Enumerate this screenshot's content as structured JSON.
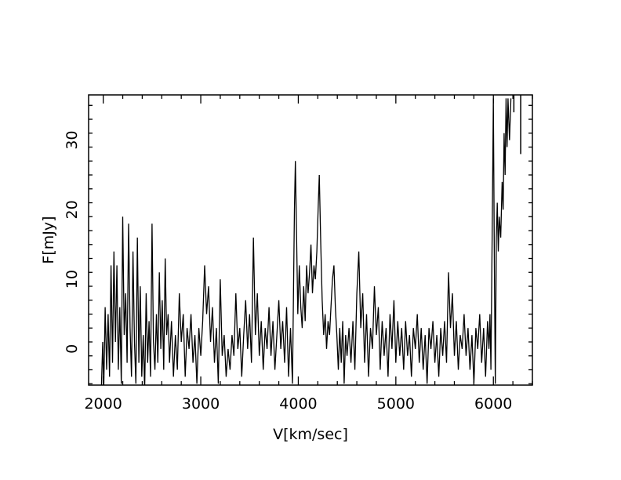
{
  "chart_data": {
    "type": "line",
    "title": "",
    "xlabel": "V[km/sec]",
    "ylabel": "F[mJy]",
    "xlim": [
      1850,
      6400
    ],
    "ylim": [
      -5.2,
      36.5
    ],
    "xticks": [
      2000,
      3000,
      4000,
      5000,
      6000
    ],
    "xtick_labels": [
      "2000",
      "3000",
      "4000",
      "5000",
      "6000"
    ],
    "yticks": [
      0,
      10,
      20,
      30
    ],
    "ytick_labels": [
      "0",
      "10",
      "20",
      "30"
    ],
    "grid": false,
    "legend": "none",
    "line_color": "#000000",
    "series": [
      {
        "values": [
          [
            1980,
            -6
          ],
          [
            1995,
            1
          ],
          [
            2005,
            -6
          ],
          [
            2020,
            6
          ],
          [
            2035,
            -3
          ],
          [
            2050,
            5
          ],
          [
            2065,
            -4
          ],
          [
            2080,
            12
          ],
          [
            2095,
            -2
          ],
          [
            2110,
            14
          ],
          [
            2125,
            1
          ],
          [
            2140,
            12
          ],
          [
            2155,
            -3
          ],
          [
            2170,
            6
          ],
          [
            2185,
            -5
          ],
          [
            2200,
            19
          ],
          [
            2215,
            2
          ],
          [
            2230,
            8
          ],
          [
            2245,
            -2
          ],
          [
            2260,
            18
          ],
          [
            2275,
            3
          ],
          [
            2290,
            -4
          ],
          [
            2305,
            14
          ],
          [
            2320,
            1
          ],
          [
            2335,
            -5
          ],
          [
            2350,
            16
          ],
          [
            2365,
            -2
          ],
          [
            2380,
            9
          ],
          [
            2395,
            -4
          ],
          [
            2410,
            2
          ],
          [
            2425,
            -6
          ],
          [
            2440,
            8
          ],
          [
            2455,
            -2
          ],
          [
            2470,
            4
          ],
          [
            2485,
            -4
          ],
          [
            2500,
            18
          ],
          [
            2515,
            1
          ],
          [
            2530,
            -3
          ],
          [
            2545,
            5
          ],
          [
            2560,
            -2
          ],
          [
            2575,
            11
          ],
          [
            2590,
            0
          ],
          [
            2605,
            7
          ],
          [
            2620,
            -3
          ],
          [
            2635,
            13
          ],
          [
            2650,
            2
          ],
          [
            2665,
            5
          ],
          [
            2680,
            -2
          ],
          [
            2700,
            4
          ],
          [
            2720,
            -4
          ],
          [
            2740,
            2
          ],
          [
            2760,
            -3
          ],
          [
            2780,
            8
          ],
          [
            2800,
            1
          ],
          [
            2820,
            5
          ],
          [
            2840,
            -4
          ],
          [
            2860,
            3
          ],
          [
            2880,
            0
          ],
          [
            2900,
            5
          ],
          [
            2920,
            -2
          ],
          [
            2940,
            2
          ],
          [
            2960,
            -5
          ],
          [
            2980,
            3
          ],
          [
            3000,
            -1
          ],
          [
            3020,
            4
          ],
          [
            3040,
            12
          ],
          [
            3060,
            5
          ],
          [
            3080,
            9
          ],
          [
            3100,
            1
          ],
          [
            3120,
            6
          ],
          [
            3140,
            -2
          ],
          [
            3160,
            3
          ],
          [
            3180,
            -5
          ],
          [
            3200,
            10
          ],
          [
            3220,
            -1
          ],
          [
            3240,
            2
          ],
          [
            3260,
            -4
          ],
          [
            3280,
            0
          ],
          [
            3300,
            -3
          ],
          [
            3320,
            2
          ],
          [
            3340,
            -1
          ],
          [
            3360,
            8
          ],
          [
            3380,
            0
          ],
          [
            3400,
            3
          ],
          [
            3420,
            -4
          ],
          [
            3440,
            2
          ],
          [
            3460,
            7
          ],
          [
            3480,
            0
          ],
          [
            3500,
            5
          ],
          [
            3520,
            -2
          ],
          [
            3540,
            16
          ],
          [
            3560,
            2
          ],
          [
            3580,
            8
          ],
          [
            3600,
            -1
          ],
          [
            3620,
            4
          ],
          [
            3640,
            -3
          ],
          [
            3660,
            3
          ],
          [
            3680,
            0
          ],
          [
            3700,
            6
          ],
          [
            3720,
            -1
          ],
          [
            3740,
            4
          ],
          [
            3760,
            -3
          ],
          [
            3780,
            2
          ],
          [
            3800,
            7
          ],
          [
            3820,
            0
          ],
          [
            3840,
            4
          ],
          [
            3860,
            -2
          ],
          [
            3880,
            6
          ],
          [
            3900,
            -4
          ],
          [
            3920,
            3
          ],
          [
            3940,
            -5
          ],
          [
            3960,
            20
          ],
          [
            3970,
            27
          ],
          [
            3980,
            18
          ],
          [
            3995,
            5
          ],
          [
            4010,
            12
          ],
          [
            4025,
            6
          ],
          [
            4040,
            3
          ],
          [
            4055,
            9
          ],
          [
            4070,
            4
          ],
          [
            4085,
            12
          ],
          [
            4100,
            8
          ],
          [
            4115,
            11
          ],
          [
            4130,
            15
          ],
          [
            4145,
            8
          ],
          [
            4160,
            12
          ],
          [
            4175,
            10
          ],
          [
            4190,
            14
          ],
          [
            4205,
            21
          ],
          [
            4215,
            25
          ],
          [
            4230,
            15
          ],
          [
            4245,
            7
          ],
          [
            4260,
            2
          ],
          [
            4275,
            5
          ],
          [
            4290,
            0
          ],
          [
            4305,
            4
          ],
          [
            4320,
            2
          ],
          [
            4335,
            6
          ],
          [
            4350,
            10
          ],
          [
            4365,
            12
          ],
          [
            4380,
            6
          ],
          [
            4395,
            2
          ],
          [
            4410,
            -3
          ],
          [
            4425,
            3
          ],
          [
            4440,
            -2
          ],
          [
            4455,
            4
          ],
          [
            4470,
            -5
          ],
          [
            4485,
            2
          ],
          [
            4500,
            -1
          ],
          [
            4520,
            3
          ],
          [
            4540,
            -2
          ],
          [
            4560,
            4
          ],
          [
            4580,
            -3
          ],
          [
            4600,
            8
          ],
          [
            4620,
            14
          ],
          [
            4640,
            3
          ],
          [
            4660,
            8
          ],
          [
            4680,
            -2
          ],
          [
            4700,
            5
          ],
          [
            4720,
            -4
          ],
          [
            4740,
            3
          ],
          [
            4760,
            0
          ],
          [
            4780,
            9
          ],
          [
            4800,
            2
          ],
          [
            4820,
            6
          ],
          [
            4840,
            -3
          ],
          [
            4860,
            4
          ],
          [
            4880,
            -1
          ],
          [
            4900,
            3
          ],
          [
            4920,
            -4
          ],
          [
            4940,
            5
          ],
          [
            4960,
            0
          ],
          [
            4980,
            7
          ],
          [
            5000,
            -2
          ],
          [
            5020,
            4
          ],
          [
            5040,
            -1
          ],
          [
            5060,
            3
          ],
          [
            5080,
            -3
          ],
          [
            5100,
            4
          ],
          [
            5120,
            -1
          ],
          [
            5140,
            2
          ],
          [
            5160,
            -4
          ],
          [
            5180,
            3
          ],
          [
            5200,
            0
          ],
          [
            5220,
            5
          ],
          [
            5240,
            -2
          ],
          [
            5260,
            3
          ],
          [
            5280,
            -3
          ],
          [
            5300,
            2
          ],
          [
            5320,
            -5
          ],
          [
            5340,
            3
          ],
          [
            5360,
            0
          ],
          [
            5380,
            4
          ],
          [
            5400,
            -2
          ],
          [
            5420,
            2
          ],
          [
            5440,
            -4
          ],
          [
            5460,
            3
          ],
          [
            5480,
            -1
          ],
          [
            5500,
            4
          ],
          [
            5520,
            -2
          ],
          [
            5540,
            11
          ],
          [
            5560,
            3
          ],
          [
            5580,
            8
          ],
          [
            5600,
            -1
          ],
          [
            5620,
            4
          ],
          [
            5640,
            -3
          ],
          [
            5660,
            2
          ],
          [
            5680,
            0
          ],
          [
            5700,
            5
          ],
          [
            5720,
            -1
          ],
          [
            5740,
            3
          ],
          [
            5760,
            -3
          ],
          [
            5780,
            2
          ],
          [
            5800,
            -5
          ],
          [
            5820,
            3
          ],
          [
            5840,
            0
          ],
          [
            5860,
            5
          ],
          [
            5880,
            -2
          ],
          [
            5900,
            3
          ],
          [
            5920,
            -4
          ],
          [
            5940,
            4
          ],
          [
            5955,
            0
          ],
          [
            5965,
            5
          ],
          [
            5975,
            -3
          ],
          [
            5990,
            20
          ],
          [
            6000,
            36
          ],
          [
            6010,
            12
          ],
          [
            6020,
            -5
          ],
          [
            6030,
            16
          ],
          [
            6040,
            21
          ],
          [
            6050,
            14
          ],
          [
            6060,
            19
          ],
          [
            6075,
            16
          ],
          [
            6090,
            24
          ],
          [
            6100,
            20
          ],
          [
            6110,
            31
          ],
          [
            6120,
            25
          ],
          [
            6130,
            36
          ],
          [
            6140,
            29
          ],
          [
            6150,
            36
          ],
          [
            6165,
            30
          ],
          [
            6180,
            36
          ]
        ]
      }
    ],
    "extra_marks": [
      {
        "x": 6210,
        "y_top": 36.5,
        "y_bottom": 34
      },
      {
        "x": 6280,
        "y_top": 36.5,
        "y_bottom": 28
      }
    ]
  }
}
